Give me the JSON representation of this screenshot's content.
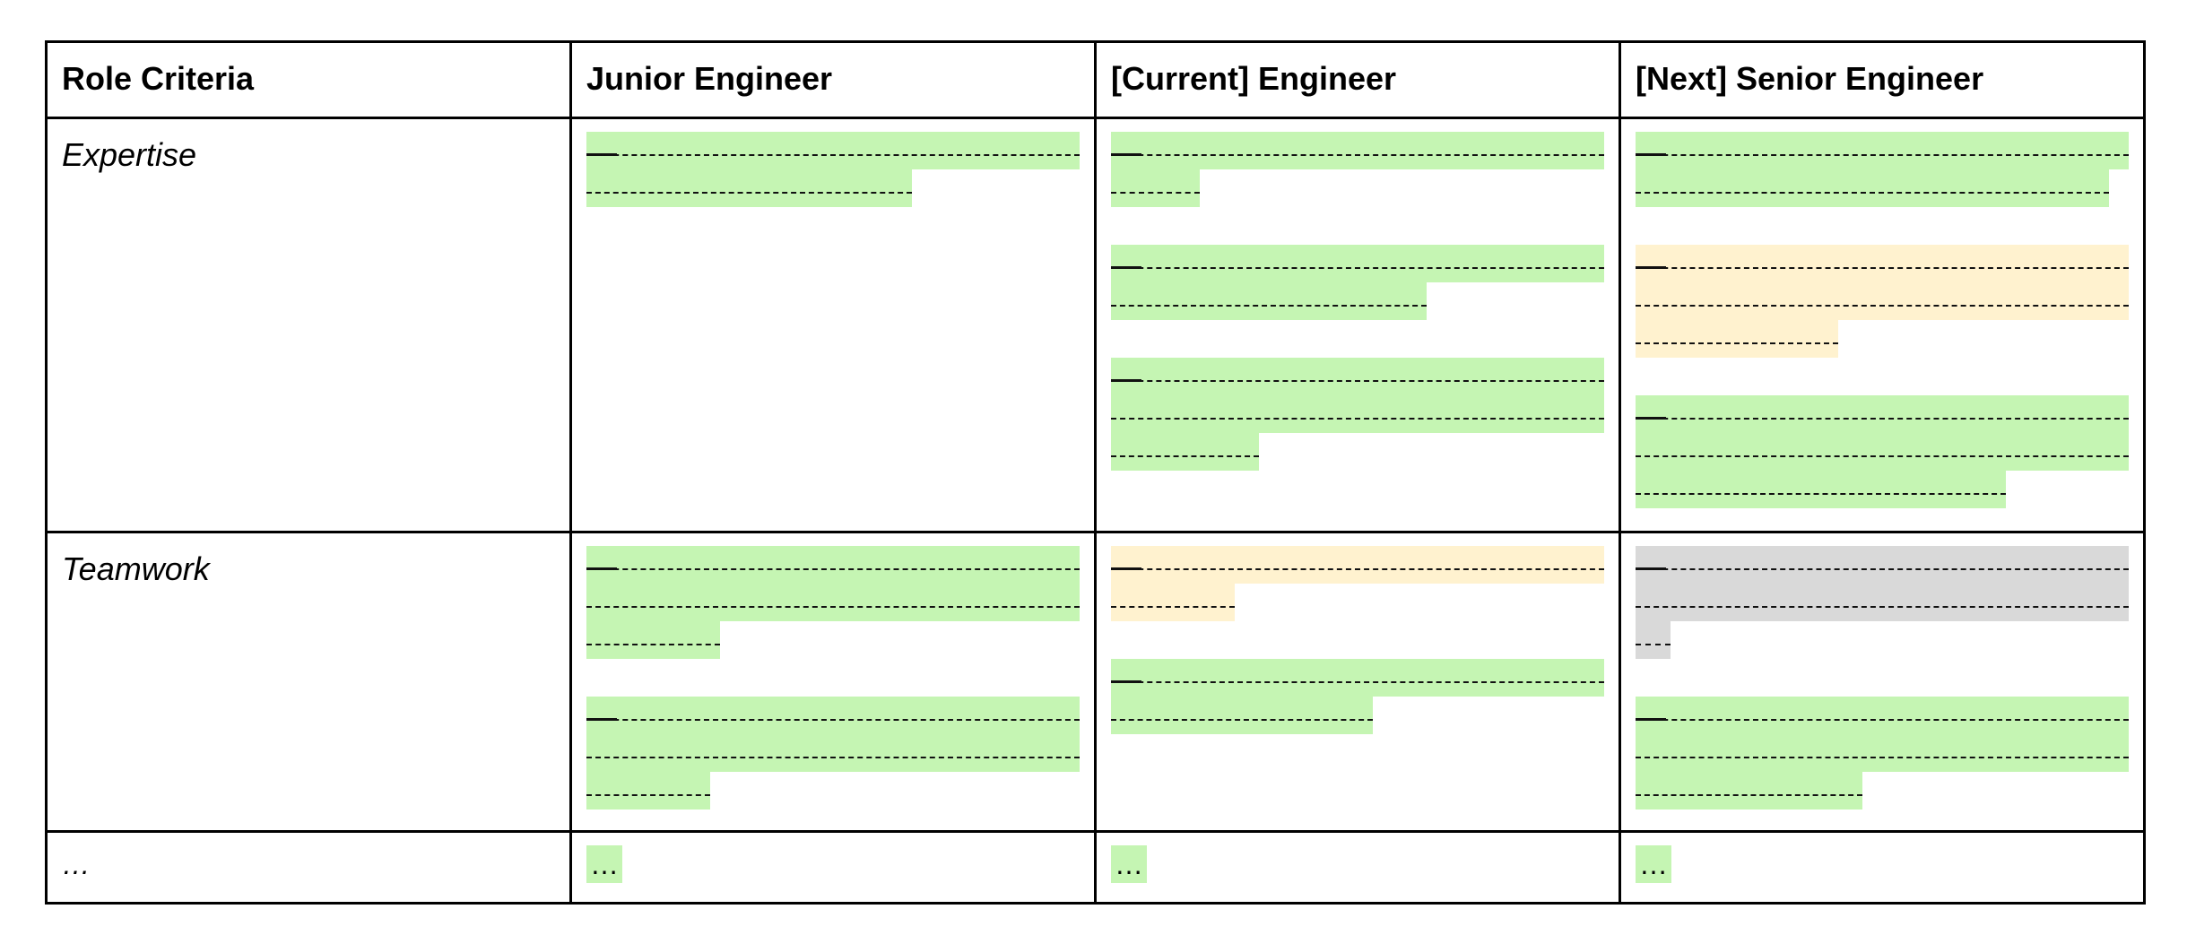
{
  "table": {
    "headers": [
      "Role Criteria",
      "Junior Engineer",
      "[Current] Engineer",
      "[Next] Senior Engineer"
    ],
    "criteria": {
      "expertise": "Expertise",
      "teamwork": "Teamwork",
      "more": "…"
    },
    "more_cells": [
      "…",
      "…",
      "…"
    ]
  },
  "colors": {
    "met": "#c5f5b3",
    "in_progress": "#fff2cf",
    "not_started": "#d9d9d9"
  },
  "cells": {
    "expertise": {
      "junior": [
        {
          "status": "met",
          "lines": 2,
          "last_line_fill": 0.66
        }
      ],
      "current": [
        {
          "status": "met",
          "lines": 2,
          "last_line_fill": 0.18
        },
        {
          "status": "met",
          "lines": 2,
          "last_line_fill": 0.64
        },
        {
          "status": "met",
          "lines": 3,
          "last_line_fill": 0.3
        }
      ],
      "next": [
        {
          "status": "met",
          "lines": 2,
          "last_line_fill": 0.96
        },
        {
          "status": "in_progress",
          "lines": 3,
          "last_line_fill": 0.41
        },
        {
          "status": "met",
          "lines": 3,
          "last_line_fill": 0.75
        }
      ]
    },
    "teamwork": {
      "junior": [
        {
          "status": "met",
          "lines": 3,
          "last_line_fill": 0.27
        },
        {
          "status": "met",
          "lines": 3,
          "last_line_fill": 0.25
        }
      ],
      "current": [
        {
          "status": "in_progress",
          "lines": 2,
          "last_line_fill": 0.25
        },
        {
          "status": "met",
          "lines": 2,
          "last_line_fill": 0.53
        }
      ],
      "next": [
        {
          "status": "not_started",
          "lines": 3,
          "last_line_fill": 0.07
        },
        {
          "status": "met",
          "lines": 3,
          "last_line_fill": 0.46
        }
      ]
    }
  }
}
